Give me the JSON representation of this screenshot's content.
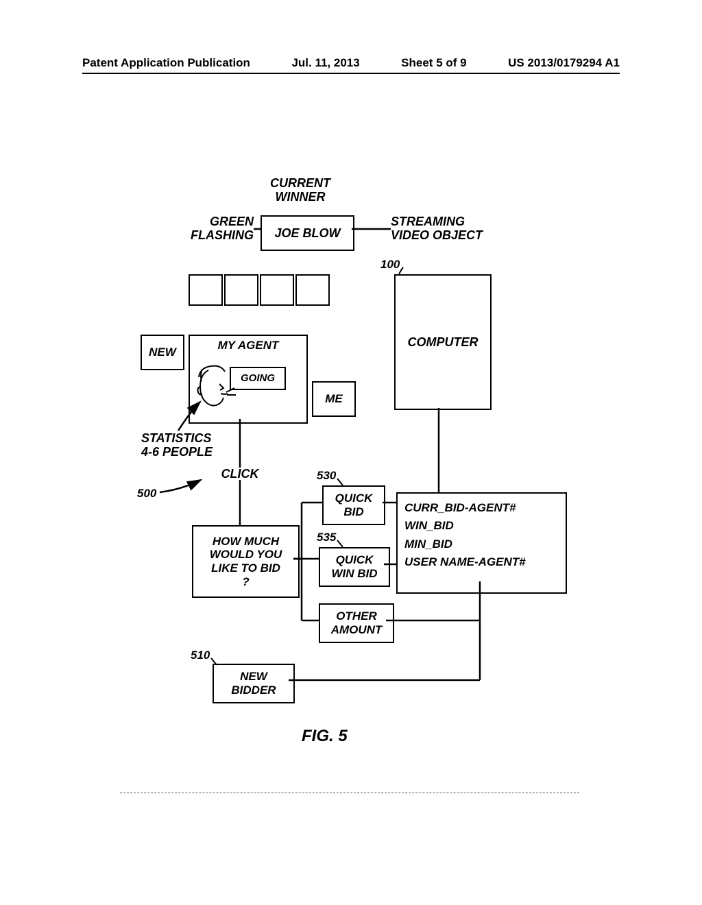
{
  "header": {
    "title": "Patent Application Publication",
    "date": "Jul. 11, 2013",
    "sheet": "Sheet 5 of 9",
    "pubno": "US 2013/0179294 A1"
  },
  "labels": {
    "current_winner": "CURRENT\nWINNER",
    "green_flashing": "GREEN\nFLASHING",
    "streaming_video": "STREAMING\nVIDEO OBJECT",
    "statistics": "STATISTICS\n4-6 PEOPLE",
    "click": "CLICK"
  },
  "boxes": {
    "joe_blow": "JOE BLOW",
    "computer": "COMPUTER",
    "new": "NEW",
    "my_agent": "MY AGENT",
    "going": "GOING",
    "me": "ME",
    "quick_bid": "QUICK\nBID",
    "quick_win_bid": "QUICK\nWIN BID",
    "other_amount": "OTHER\nAMOUNT",
    "how_much": "HOW MUCH\nWOULD YOU\nLIKE TO BID\n?",
    "new_bidder": "NEW\nBIDDER",
    "db_lines": [
      "CURR_BID-AGENT#",
      "WIN_BID",
      "MIN_BID",
      "USER NAME-AGENT#"
    ]
  },
  "refs": {
    "r100": "100",
    "r500": "500",
    "r510": "510",
    "r530": "530",
    "r535": "535"
  },
  "fig": "FIG. 5",
  "style": {
    "fontsize_header": 17,
    "fontsize_box": 18,
    "fontsize_label": 18,
    "line_color": "#000",
    "line_w": 2.5
  }
}
